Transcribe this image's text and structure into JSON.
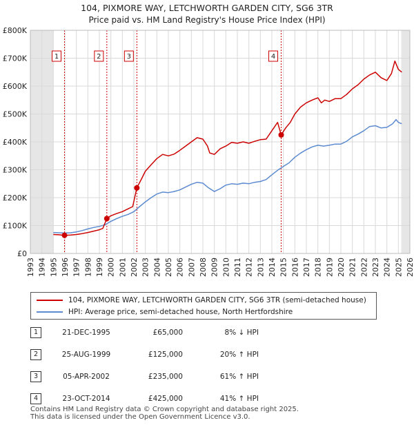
{
  "chart_data": {
    "type": "line",
    "title": "104, PIXMORE WAY, LETCHWORTH GARDEN CITY, SG6 3TR",
    "subtitle": "Price paid vs. HM Land Registry's House Price Index (HPI)",
    "xlim": [
      1993,
      2026
    ],
    "ylim": [
      0,
      800000
    ],
    "x_ticks": [
      "1993",
      "1994",
      "1995",
      "1996",
      "1997",
      "1998",
      "1999",
      "2000",
      "2001",
      "2002",
      "2003",
      "2004",
      "2005",
      "2006",
      "2007",
      "2008",
      "2009",
      "2010",
      "2011",
      "2012",
      "2013",
      "2014",
      "2015",
      "2016",
      "2017",
      "2018",
      "2019",
      "2020",
      "2021",
      "2022",
      "2023",
      "2024",
      "2025",
      "2026"
    ],
    "y_ticks": [
      {
        "value": 0,
        "label": "£0"
      },
      {
        "value": 100000,
        "label": "£100K"
      },
      {
        "value": 200000,
        "label": "£200K"
      },
      {
        "value": 300000,
        "label": "£300K"
      },
      {
        "value": 400000,
        "label": "£400K"
      },
      {
        "value": 500000,
        "label": "£500K"
      },
      {
        "value": 600000,
        "label": "£600K"
      },
      {
        "value": 700000,
        "label": "£700K"
      },
      {
        "value": 800000,
        "label": "£800K"
      }
    ],
    "shaded_ranges": [
      [
        1993,
        1995.0
      ],
      [
        2025.25,
        2026
      ]
    ],
    "series": [
      {
        "name": "104, PIXMORE WAY, LETCHWORTH GARDEN CITY, SG6 3TR (semi-detached house)",
        "color": "#cc0000",
        "points": [
          [
            1995.0,
            68000
          ],
          [
            1995.5,
            67000
          ],
          [
            1995.97,
            65000
          ],
          [
            1996.5,
            66000
          ],
          [
            1997,
            68000
          ],
          [
            1997.5,
            71000
          ],
          [
            1998,
            75000
          ],
          [
            1998.5,
            80000
          ],
          [
            1999,
            85000
          ],
          [
            1999.3,
            90000
          ],
          [
            1999.65,
            125000
          ],
          [
            2000,
            135000
          ],
          [
            2000.5,
            143000
          ],
          [
            2001,
            150000
          ],
          [
            2001.5,
            160000
          ],
          [
            2001.9,
            168000
          ],
          [
            2002.26,
            235000
          ],
          [
            2002.7,
            270000
          ],
          [
            2003,
            295000
          ],
          [
            2003.5,
            318000
          ],
          [
            2004,
            340000
          ],
          [
            2004.5,
            355000
          ],
          [
            2005,
            350000
          ],
          [
            2005.5,
            356000
          ],
          [
            2006,
            370000
          ],
          [
            2006.5,
            385000
          ],
          [
            2007,
            400000
          ],
          [
            2007.5,
            415000
          ],
          [
            2008,
            410000
          ],
          [
            2008.4,
            385000
          ],
          [
            2008.6,
            360000
          ],
          [
            2009,
            355000
          ],
          [
            2009.5,
            375000
          ],
          [
            2010,
            385000
          ],
          [
            2010.5,
            398000
          ],
          [
            2011,
            395000
          ],
          [
            2011.5,
            400000
          ],
          [
            2012,
            395000
          ],
          [
            2012.5,
            402000
          ],
          [
            2013,
            408000
          ],
          [
            2013.5,
            410000
          ],
          [
            2014,
            440000
          ],
          [
            2014.5,
            470000
          ],
          [
            2014.81,
            425000
          ],
          [
            2015.2,
            450000
          ],
          [
            2015.6,
            470000
          ],
          [
            2016,
            500000
          ],
          [
            2016.5,
            525000
          ],
          [
            2017,
            540000
          ],
          [
            2017.5,
            550000
          ],
          [
            2018,
            558000
          ],
          [
            2018.3,
            540000
          ],
          [
            2018.6,
            550000
          ],
          [
            2019,
            545000
          ],
          [
            2019.5,
            555000
          ],
          [
            2020,
            555000
          ],
          [
            2020.5,
            570000
          ],
          [
            2021,
            590000
          ],
          [
            2021.5,
            605000
          ],
          [
            2022,
            625000
          ],
          [
            2022.5,
            640000
          ],
          [
            2023,
            650000
          ],
          [
            2023.5,
            630000
          ],
          [
            2024,
            620000
          ],
          [
            2024.4,
            645000
          ],
          [
            2024.7,
            690000
          ],
          [
            2025,
            660000
          ],
          [
            2025.3,
            650000
          ]
        ]
      },
      {
        "name": "HPI: Average price, semi-detached house, North Hertfordshire",
        "color": "#5b8ad0",
        "points": [
          [
            1995.0,
            75000
          ],
          [
            1995.5,
            74000
          ],
          [
            1996,
            73000
          ],
          [
            1996.5,
            74000
          ],
          [
            1997,
            77000
          ],
          [
            1997.5,
            82000
          ],
          [
            1998,
            88000
          ],
          [
            1998.5,
            93000
          ],
          [
            1999,
            97000
          ],
          [
            1999.5,
            103000
          ],
          [
            2000,
            115000
          ],
          [
            2000.5,
            125000
          ],
          [
            2001,
            133000
          ],
          [
            2001.5,
            140000
          ],
          [
            2002,
            150000
          ],
          [
            2002.5,
            168000
          ],
          [
            2003,
            185000
          ],
          [
            2003.5,
            200000
          ],
          [
            2004,
            213000
          ],
          [
            2004.5,
            220000
          ],
          [
            2005,
            218000
          ],
          [
            2005.5,
            222000
          ],
          [
            2006,
            228000
          ],
          [
            2006.5,
            238000
          ],
          [
            2007,
            248000
          ],
          [
            2007.5,
            255000
          ],
          [
            2008,
            252000
          ],
          [
            2008.5,
            235000
          ],
          [
            2009,
            222000
          ],
          [
            2009.5,
            232000
          ],
          [
            2010,
            245000
          ],
          [
            2010.5,
            250000
          ],
          [
            2011,
            248000
          ],
          [
            2011.5,
            252000
          ],
          [
            2012,
            250000
          ],
          [
            2012.5,
            255000
          ],
          [
            2013,
            258000
          ],
          [
            2013.5,
            265000
          ],
          [
            2014,
            282000
          ],
          [
            2014.5,
            298000
          ],
          [
            2015,
            312000
          ],
          [
            2015.5,
            325000
          ],
          [
            2016,
            345000
          ],
          [
            2016.5,
            360000
          ],
          [
            2017,
            372000
          ],
          [
            2017.5,
            382000
          ],
          [
            2018,
            388000
          ],
          [
            2018.5,
            385000
          ],
          [
            2019,
            388000
          ],
          [
            2019.5,
            392000
          ],
          [
            2020,
            392000
          ],
          [
            2020.5,
            402000
          ],
          [
            2021,
            418000
          ],
          [
            2021.5,
            428000
          ],
          [
            2022,
            440000
          ],
          [
            2022.5,
            455000
          ],
          [
            2023,
            458000
          ],
          [
            2023.5,
            450000
          ],
          [
            2024,
            452000
          ],
          [
            2024.5,
            465000
          ],
          [
            2024.8,
            480000
          ],
          [
            2025,
            470000
          ],
          [
            2025.3,
            465000
          ]
        ]
      }
    ],
    "markers": [
      {
        "label": "1",
        "x": 1995.97,
        "value": 65000
      },
      {
        "label": "2",
        "x": 1999.65,
        "value": 125000
      },
      {
        "label": "3",
        "x": 2002.26,
        "value": 235000
      },
      {
        "label": "4",
        "x": 2014.81,
        "value": 425000
      }
    ]
  },
  "legend": {
    "series1": "104, PIXMORE WAY, LETCHWORTH GARDEN CITY, SG6 3TR (semi-detached house)",
    "series2": "HPI: Average price, semi-detached house, North Hertfordshire",
    "color1": "#cc0000",
    "color2": "#5b8ad0"
  },
  "sales": [
    {
      "num": "1",
      "date": "21-DEC-1995",
      "price": "£65,000",
      "hpi": "8% ↓ HPI"
    },
    {
      "num": "2",
      "date": "25-AUG-1999",
      "price": "£125,000",
      "hpi": "20% ↑ HPI"
    },
    {
      "num": "3",
      "date": "05-APR-2002",
      "price": "£235,000",
      "hpi": "61% ↑ HPI"
    },
    {
      "num": "4",
      "date": "23-OCT-2014",
      "price": "£425,000",
      "hpi": "41% ↑ HPI"
    }
  ],
  "footer": {
    "line1": "Contains HM Land Registry data © Crown copyright and database right 2025.",
    "line2": "This data is licensed under the Open Government Licence v3.0."
  }
}
